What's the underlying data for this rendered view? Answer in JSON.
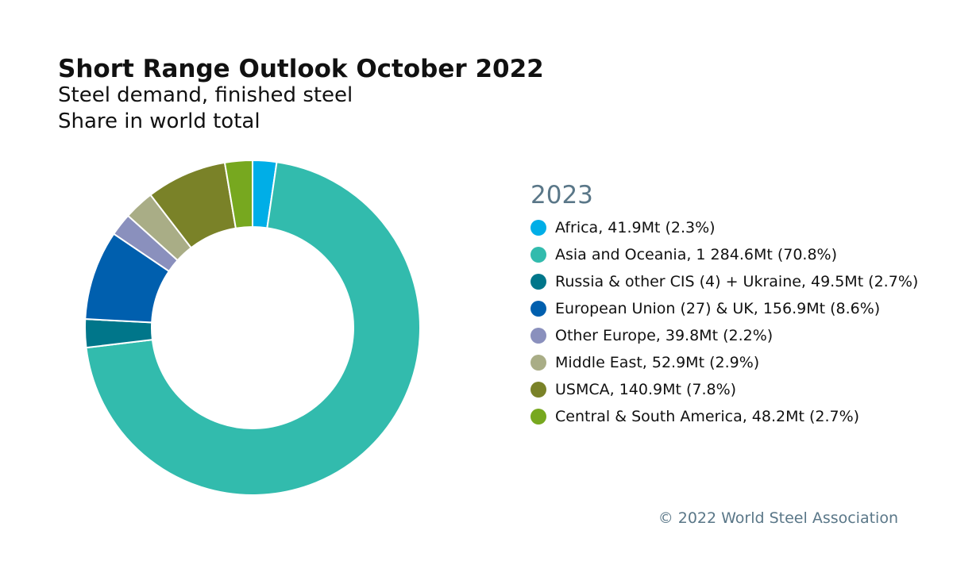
{
  "header": {
    "title": "Short Range Outlook October 2022",
    "subtitle": "Steel demand, finished steel",
    "subtitle2": "Share in world total"
  },
  "chart_data": {
    "type": "pie",
    "variant": "donut",
    "title": "Short Range Outlook October 2022",
    "legend_title": "2023",
    "legend_placement": "right",
    "slices": [
      {
        "name": "Africa",
        "value": 41.9,
        "unit": "Mt",
        "share": 2.3,
        "color": "#00aee7",
        "label": "Africa, 41.9Mt (2.3%)"
      },
      {
        "name": "Asia and Oceania",
        "value": 1284.6,
        "unit": "Mt",
        "share": 70.8,
        "color": "#32bbad",
        "label": "Asia and Oceania, 1 284.6Mt (70.8%)"
      },
      {
        "name": "Russia & other CIS (4) + Ukraine",
        "value": 49.5,
        "unit": "Mt",
        "share": 2.7,
        "color": "#00768a",
        "label": "Russia & other CIS (4) + Ukraine, 49.5Mt (2.7%)"
      },
      {
        "name": "European Union (27) & UK",
        "value": 156.9,
        "unit": "Mt",
        "share": 8.6,
        "color": "#005fae",
        "label": "European Union (27) & UK, 156.9Mt (8.6%)"
      },
      {
        "name": "Other Europe",
        "value": 39.8,
        "unit": "Mt",
        "share": 2.2,
        "color": "#8a90bd",
        "label": "Other Europe, 39.8Mt (2.2%)"
      },
      {
        "name": "Middle East",
        "value": 52.9,
        "unit": "Mt",
        "share": 2.9,
        "color": "#a9ad86",
        "label": "Middle East, 52.9Mt (2.9%)"
      },
      {
        "name": "USMCA",
        "value": 140.9,
        "unit": "Mt",
        "share": 7.8,
        "color": "#7a8228",
        "label": "USMCA, 140.9Mt (7.8%)"
      },
      {
        "name": "Central & South America",
        "value": 48.2,
        "unit": "Mt",
        "share": 2.7,
        "color": "#77a81f",
        "label": "Central & South America, 48.2Mt (2.7%)"
      }
    ]
  },
  "footer": {
    "copyright": "© 2022 World Steel Association"
  }
}
